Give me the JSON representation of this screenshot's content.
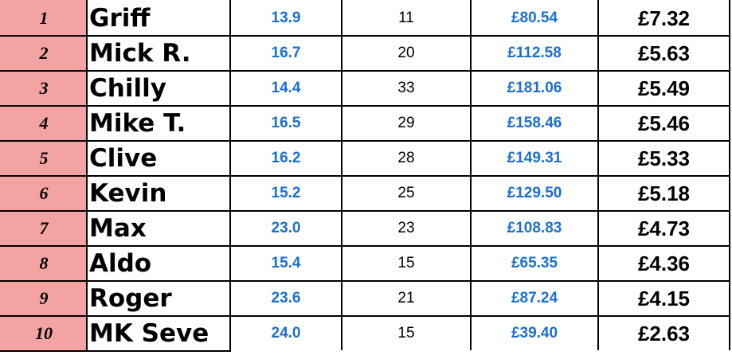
{
  "colors": {
    "rank_bg": "#f4a3a3",
    "blue_text": "#1a6fd1"
  },
  "rows": [
    [
      "1",
      "Griff",
      "13.9",
      "11",
      "£80.54",
      "£7.32"
    ],
    [
      "2",
      "Mick R.",
      "16.7",
      "20",
      "£112.58",
      "£5.63"
    ],
    [
      "3",
      "Chilly",
      "14.4",
      "33",
      "£181.06",
      "£5.49"
    ],
    [
      "4",
      "Mike T.",
      "16.5",
      "29",
      "£158.46",
      "£5.46"
    ],
    [
      "5",
      "Clive",
      "16.2",
      "28",
      "£149.31",
      "£5.33"
    ],
    [
      "6",
      "Kevin",
      "15.2",
      "25",
      "£129.50",
      "£5.18"
    ],
    [
      "7",
      "Max",
      "23.0",
      "23",
      "£108.83",
      "£4.73"
    ],
    [
      "8",
      "Aldo",
      "15.4",
      "15",
      "£65.35",
      "£4.36"
    ],
    [
      "9",
      "Roger",
      "23.6",
      "21",
      "£87.24",
      "£4.15"
    ],
    [
      "10",
      "MK Seve",
      "24.0",
      "15",
      "£39.40",
      "£2.63"
    ]
  ]
}
